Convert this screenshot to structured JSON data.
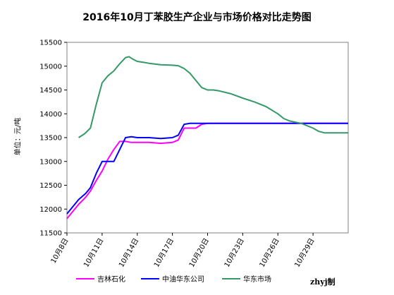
{
  "chart_data": {
    "type": "line",
    "title": "2016年10月丁苯胶生产企业与市场价格对比走势图",
    "xlabel": "",
    "ylabel": "单位：元/吨",
    "ylim": [
      11500,
      15500
    ],
    "yticks": [
      11500,
      12000,
      12500,
      13000,
      13500,
      14000,
      14500,
      15000,
      15500
    ],
    "xlim": [
      8,
      32
    ],
    "xticks": [
      {
        "x": 8,
        "label": "10月8日"
      },
      {
        "x": 11,
        "label": "10月11日"
      },
      {
        "x": 14,
        "label": "10月14日"
      },
      {
        "x": 17,
        "label": "10月17日"
      },
      {
        "x": 20,
        "label": "10月20日"
      },
      {
        "x": 23,
        "label": "10月23日"
      },
      {
        "x": 26,
        "label": "10月26日"
      },
      {
        "x": 29,
        "label": "10月29日"
      }
    ],
    "grid": false,
    "legend_position": "bottom",
    "series": [
      {
        "name": "吉林石化",
        "color": "#ff00ff",
        "points": [
          [
            8,
            11800
          ],
          [
            8.5,
            11950
          ],
          [
            9,
            12100
          ],
          [
            9.6,
            12250
          ],
          [
            10,
            12380
          ],
          [
            10.5,
            12600
          ],
          [
            11,
            12800
          ],
          [
            11.5,
            13050
          ],
          [
            12,
            13250
          ],
          [
            12.5,
            13420
          ],
          [
            13,
            13420
          ],
          [
            13.5,
            13400
          ],
          [
            14,
            13400
          ],
          [
            15,
            13400
          ],
          [
            16,
            13380
          ],
          [
            17,
            13400
          ],
          [
            17.5,
            13450
          ],
          [
            18,
            13700
          ],
          [
            18.5,
            13700
          ],
          [
            19,
            13700
          ],
          [
            19.5,
            13780
          ],
          [
            20,
            13800
          ],
          [
            32,
            13800
          ]
        ]
      },
      {
        "name": "中油华东公司",
        "color": "#0000ff",
        "points": [
          [
            8,
            11900
          ],
          [
            8.5,
            12050
          ],
          [
            9,
            12200
          ],
          [
            9.6,
            12330
          ],
          [
            10,
            12450
          ],
          [
            10.5,
            12750
          ],
          [
            11,
            13000
          ],
          [
            11.5,
            13000
          ],
          [
            12,
            13000
          ],
          [
            12.5,
            13250
          ],
          [
            13,
            13500
          ],
          [
            13.5,
            13520
          ],
          [
            14,
            13500
          ],
          [
            15,
            13500
          ],
          [
            16,
            13480
          ],
          [
            17,
            13500
          ],
          [
            17.5,
            13550
          ],
          [
            18,
            13780
          ],
          [
            18.5,
            13800
          ],
          [
            32,
            13800
          ]
        ]
      },
      {
        "name": "华东市场",
        "color": "#339966",
        "points": [
          [
            9,
            13500
          ],
          [
            9.5,
            13580
          ],
          [
            10,
            13700
          ],
          [
            10.5,
            14200
          ],
          [
            11,
            14650
          ],
          [
            11.5,
            14800
          ],
          [
            12,
            14900
          ],
          [
            12.5,
            15050
          ],
          [
            13,
            15180
          ],
          [
            13.3,
            15200
          ],
          [
            13.6,
            15150
          ],
          [
            14,
            15100
          ],
          [
            14.5,
            15080
          ],
          [
            15,
            15060
          ],
          [
            16,
            15030
          ],
          [
            17,
            15020
          ],
          [
            17.5,
            15010
          ],
          [
            18,
            14950
          ],
          [
            18.5,
            14850
          ],
          [
            19,
            14700
          ],
          [
            19.5,
            14550
          ],
          [
            20,
            14500
          ],
          [
            20.5,
            14500
          ],
          [
            21,
            14480
          ],
          [
            22,
            14420
          ],
          [
            23,
            14330
          ],
          [
            24,
            14250
          ],
          [
            25,
            14150
          ],
          [
            26,
            14000
          ],
          [
            26.5,
            13900
          ],
          [
            27,
            13850
          ],
          [
            28,
            13800
          ],
          [
            29,
            13700
          ],
          [
            29.5,
            13630
          ],
          [
            30,
            13600
          ],
          [
            32,
            13600
          ]
        ]
      }
    ]
  },
  "credit": "zhyj制"
}
